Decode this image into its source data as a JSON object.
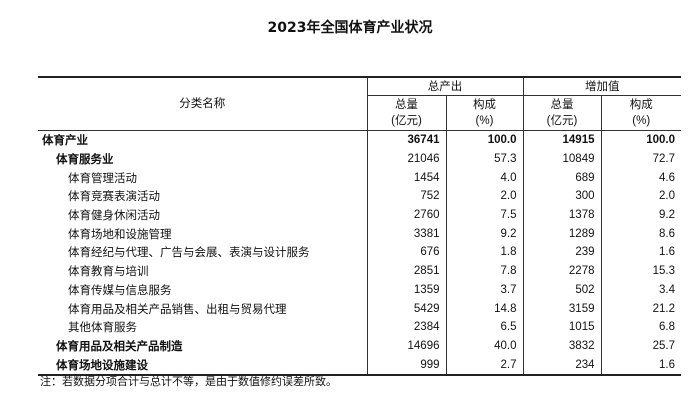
{
  "title": "2023年全国体育产业状况",
  "header": {
    "name": "分类名称",
    "group1": "总产出",
    "group2": "增加值",
    "amount": "总量",
    "amount_unit": "(亿元)",
    "share": "构成",
    "share_unit": "(%)"
  },
  "rows": [
    {
      "name": "体育产业",
      "level": 0,
      "v": [
        "36741",
        "100.0",
        "14915",
        "100.0"
      ]
    },
    {
      "name": "体育服务业",
      "level": 1,
      "v": [
        "21046",
        "57.3",
        "10849",
        "72.7"
      ]
    },
    {
      "name": "体育管理活动",
      "level": 2,
      "v": [
        "1454",
        "4.0",
        "689",
        "4.6"
      ]
    },
    {
      "name": "体育竞赛表演活动",
      "level": 2,
      "v": [
        "752",
        "2.0",
        "300",
        "2.0"
      ]
    },
    {
      "name": "体育健身休闲活动",
      "level": 2,
      "v": [
        "2760",
        "7.5",
        "1378",
        "9.2"
      ]
    },
    {
      "name": "体育场地和设施管理",
      "level": 2,
      "v": [
        "3381",
        "9.2",
        "1289",
        "8.6"
      ]
    },
    {
      "name": "体育经纪与代理、广告与会展、表演与设计服务",
      "level": 2,
      "v": [
        "676",
        "1.8",
        "239",
        "1.6"
      ]
    },
    {
      "name": "体育教育与培训",
      "level": 2,
      "v": [
        "2851",
        "7.8",
        "2278",
        "15.3"
      ]
    },
    {
      "name": "体育传媒与信息服务",
      "level": 2,
      "v": [
        "1359",
        "3.7",
        "502",
        "3.4"
      ]
    },
    {
      "name": "体育用品及相关产品销售、出租与贸易代理",
      "level": 2,
      "v": [
        "5429",
        "14.8",
        "3159",
        "21.2"
      ]
    },
    {
      "name": "其他体育服务",
      "level": 2,
      "v": [
        "2384",
        "6.5",
        "1015",
        "6.8"
      ]
    },
    {
      "name": "体育用品及相关产品制造",
      "level": 1,
      "v": [
        "14696",
        "40.0",
        "3832",
        "25.7"
      ]
    },
    {
      "name": "体育场地设施建设",
      "level": 1,
      "v": [
        "999",
        "2.7",
        "234",
        "1.6"
      ]
    }
  ],
  "note": "注：若数据分项合计与总计不等，是由于数值修约误差所致。"
}
